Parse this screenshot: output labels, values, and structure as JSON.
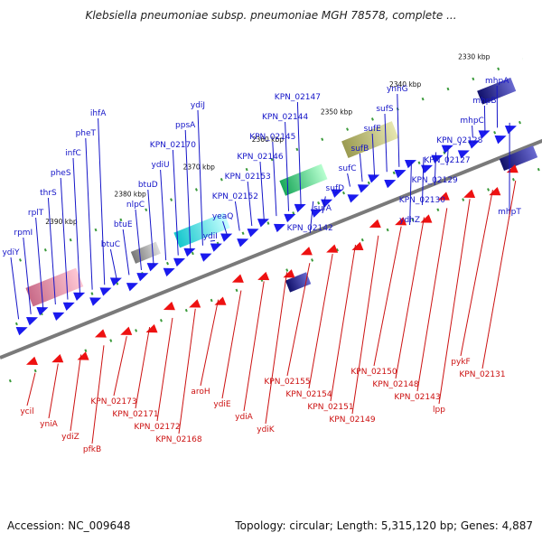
{
  "title": "Klebsiella pneumoniae subsp. pneumoniae MGH 78578, complete ...",
  "footer": {
    "accession": "Accession: NC_009648",
    "summary": "Topology: circular; Length: 5,315,120 bp; Genes: 4,887"
  },
  "colors": {
    "forward_label": "#1515c8",
    "forward_gene": "#1a1aee",
    "reverse_label": "#cc1111",
    "reverse_gene": "#ee1111",
    "backbone": "#7a7a7a",
    "tick": "#3a9a3a"
  },
  "ticks": [
    "2330 kbp",
    "2340 kbp",
    "2350 kbp",
    "2360 kbp",
    "2370 kbp",
    "2380 kbp",
    "2390 kbp"
  ],
  "forward_genes": [
    "ydiY",
    "rpmI",
    "rplT",
    "thrS",
    "pheS",
    "infC",
    "pheT",
    "ihfA",
    "btuC",
    "btuE",
    "nlpC",
    "btuD",
    "ydiU",
    "KPN_02170",
    "ppsA",
    "ydiJ",
    "ydiI",
    "yeaQ",
    "KPN_02152",
    "KPN_02153",
    "KPN_02146",
    "KPN_02145",
    "KPN_02144",
    "KPN_02147",
    "KPN_02142",
    "sufA",
    "sufD",
    "sufC",
    "sufB",
    "sufE",
    "sufS",
    "ynhG",
    "ydhZ",
    "KPN_02130",
    "KPN_02129",
    "KPN_02127",
    "KPN_02128",
    "mhpC",
    "mhpB",
    "mhpA",
    "mhpT"
  ],
  "reverse_genes": [
    "ycil",
    "yniA",
    "ydiZ",
    "pfkB",
    "KPN_02173",
    "KPN_02171",
    "KPN_02172",
    "KPN_02168",
    "aroH",
    "ydiE",
    "ydiA",
    "ydiK",
    "KPN_02155",
    "KPN_02154",
    "KPN_02151",
    "KPN_02149",
    "KPN_02150",
    "KPN_02148",
    "KPN_02143",
    "lpp",
    "pykF",
    "KPN_02131"
  ]
}
